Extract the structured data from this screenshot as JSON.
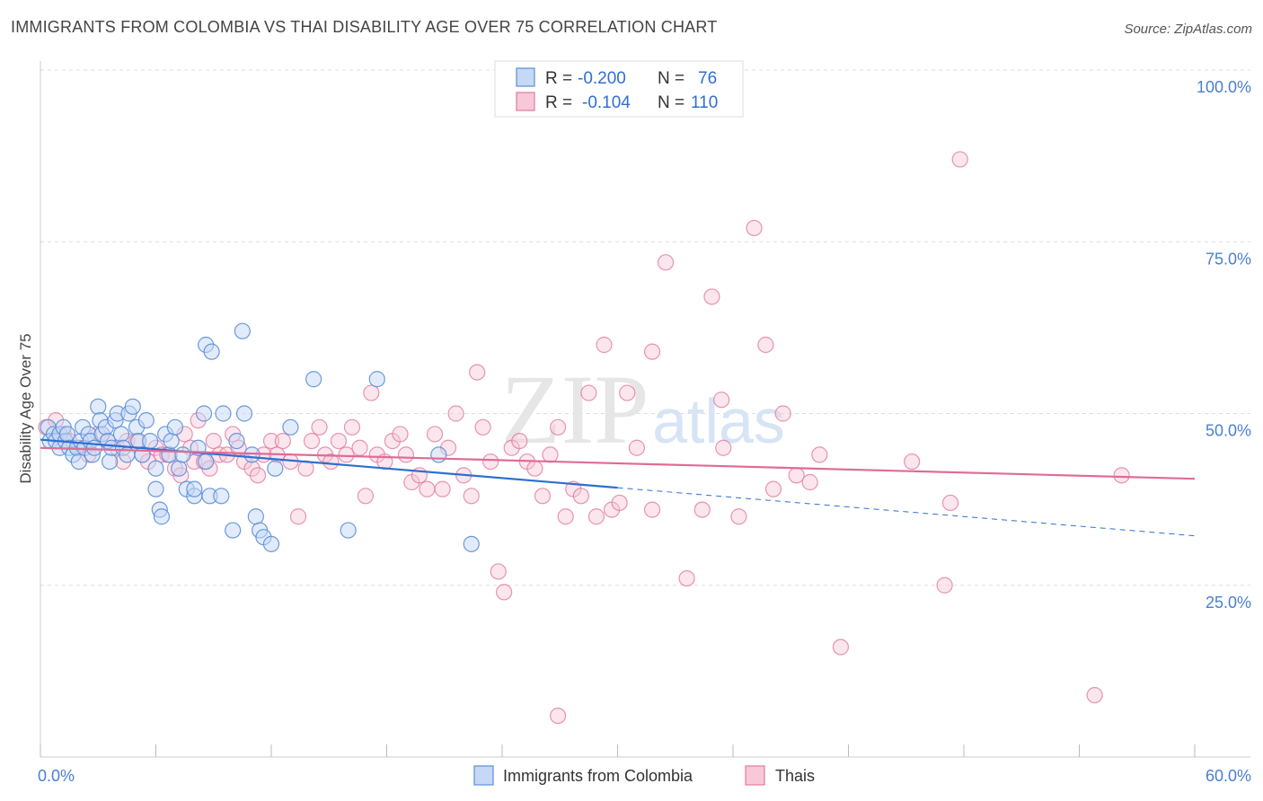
{
  "title": "IMMIGRANTS FROM COLOMBIA VS THAI DISABILITY AGE OVER 75 CORRELATION CHART",
  "source": "Source: ZipAtlas.com",
  "watermark": {
    "zip": "ZIP",
    "atlas": "atlas"
  },
  "colors": {
    "blue": "#5b8fd9",
    "blue_fill": "#c5d8f5",
    "blue_line": "#2e6fd0",
    "pink": "#e07aa0",
    "pink_fill": "#f8c8d8",
    "pink_line": "#e06b96",
    "tick_text": "#4a7fd0",
    "grid": "#dddddd"
  },
  "legend": {
    "rows": [
      {
        "r_label": "R =",
        "r_value": "-0.200",
        "n_label": "N =",
        "n_value": "76"
      },
      {
        "r_label": "R =",
        "r_value": "-0.104",
        "n_label": "N =",
        "n_value": "110"
      }
    ]
  },
  "chart_data": {
    "type": "scatter",
    "title": "IMMIGRANTS FROM COLOMBIA VS THAI DISABILITY AGE OVER 75 CORRELATION CHART",
    "xlabel": "",
    "ylabel": "Disability Age Over 75",
    "xlim": [
      0,
      60
    ],
    "ylim": [
      0,
      100
    ],
    "x_tick_labels": [
      "0.0%",
      "60.0%"
    ],
    "y_tick_labels": [
      "100.0%",
      "75.0%",
      "50.0%",
      "25.0%"
    ],
    "y_ticks": [
      100,
      75,
      50,
      25
    ],
    "grid": true,
    "legend_position": "top-center",
    "series": [
      {
        "name": "Immigrants from Colombia",
        "color": "blue",
        "trend": {
          "x0": 0,
          "y0": 46.2,
          "x1": 30,
          "y1": 39.2,
          "dash_to_x": 60,
          "dash_to_y": 32.2
        },
        "points": [
          [
            0.4,
            48
          ],
          [
            0.5,
            46
          ],
          [
            0.7,
            47
          ],
          [
            0.8,
            46
          ],
          [
            1,
            47
          ],
          [
            1,
            45
          ],
          [
            1.2,
            48
          ],
          [
            1.3,
            46
          ],
          [
            1.4,
            47
          ],
          [
            1.5,
            45
          ],
          [
            1.7,
            44
          ],
          [
            1.9,
            45
          ],
          [
            2,
            43
          ],
          [
            2.1,
            46
          ],
          [
            2.2,
            48
          ],
          [
            2.3,
            45
          ],
          [
            2.5,
            47
          ],
          [
            2.6,
            46
          ],
          [
            2.7,
            44
          ],
          [
            2.8,
            45
          ],
          [
            3,
            51
          ],
          [
            3.1,
            49
          ],
          [
            3.2,
            47
          ],
          [
            3.4,
            48
          ],
          [
            3.5,
            46
          ],
          [
            3.6,
            43
          ],
          [
            3.7,
            45
          ],
          [
            3.9,
            49
          ],
          [
            4,
            50
          ],
          [
            4.2,
            47
          ],
          [
            4.3,
            45
          ],
          [
            4.5,
            44
          ],
          [
            4.6,
            50
          ],
          [
            4.8,
            51
          ],
          [
            5,
            48
          ],
          [
            5.1,
            46
          ],
          [
            5.3,
            44
          ],
          [
            5.5,
            49
          ],
          [
            5.7,
            46
          ],
          [
            6,
            39
          ],
          [
            6,
            42
          ],
          [
            6.2,
            36
          ],
          [
            6.3,
            35
          ],
          [
            6.5,
            47
          ],
          [
            6.7,
            44
          ],
          [
            6.8,
            46
          ],
          [
            7,
            48
          ],
          [
            7.2,
            42
          ],
          [
            7.4,
            44
          ],
          [
            7.6,
            39
          ],
          [
            8,
            38
          ],
          [
            8,
            39
          ],
          [
            8.2,
            45
          ],
          [
            8.5,
            50
          ],
          [
            8.6,
            43
          ],
          [
            8.8,
            38
          ],
          [
            8.6,
            60
          ],
          [
            8.9,
            59
          ],
          [
            9.4,
            38
          ],
          [
            9.5,
            50
          ],
          [
            10.2,
            46
          ],
          [
            10,
            33
          ],
          [
            10.5,
            62
          ],
          [
            10.6,
            50
          ],
          [
            11,
            44
          ],
          [
            11.2,
            35
          ],
          [
            11.4,
            33
          ],
          [
            11.6,
            32
          ],
          [
            12,
            31
          ],
          [
            12.2,
            42
          ],
          [
            13,
            48
          ],
          [
            14.2,
            55
          ],
          [
            16,
            33
          ],
          [
            17.5,
            55
          ],
          [
            20.7,
            44
          ],
          [
            22.4,
            31
          ]
        ]
      },
      {
        "name": "Thais",
        "color": "pink",
        "trend": {
          "x0": 0,
          "y0": 45.0,
          "x1": 60,
          "y1": 40.5
        },
        "points": [
          [
            0.3,
            48
          ],
          [
            0.8,
            49
          ],
          [
            1.2,
            47
          ],
          [
            1.5,
            46
          ],
          [
            2,
            45
          ],
          [
            2.5,
            44
          ],
          [
            3,
            47
          ],
          [
            3.5,
            46
          ],
          [
            4,
            45
          ],
          [
            4.3,
            43
          ],
          [
            4.5,
            46
          ],
          [
            5,
            46
          ],
          [
            5.3,
            44
          ],
          [
            5.6,
            43
          ],
          [
            6,
            45
          ],
          [
            6.3,
            44
          ],
          [
            6.6,
            44
          ],
          [
            7,
            42
          ],
          [
            7.3,
            41
          ],
          [
            7.5,
            47
          ],
          [
            7.8,
            45
          ],
          [
            8,
            43
          ],
          [
            8.2,
            49
          ],
          [
            8.5,
            43
          ],
          [
            8.8,
            42
          ],
          [
            9,
            46
          ],
          [
            9.3,
            44
          ],
          [
            9.7,
            44
          ],
          [
            10,
            47
          ],
          [
            10.3,
            45
          ],
          [
            10.6,
            43
          ],
          [
            11,
            42
          ],
          [
            11.3,
            41
          ],
          [
            11.6,
            44
          ],
          [
            12,
            46
          ],
          [
            12.3,
            44
          ],
          [
            12.6,
            46
          ],
          [
            13,
            43
          ],
          [
            13.4,
            35
          ],
          [
            13.8,
            42
          ],
          [
            14.1,
            46
          ],
          [
            14.5,
            48
          ],
          [
            14.8,
            44
          ],
          [
            15.1,
            43
          ],
          [
            15.5,
            46
          ],
          [
            15.9,
            44
          ],
          [
            16.2,
            48
          ],
          [
            16.6,
            45
          ],
          [
            16.9,
            38
          ],
          [
            17.2,
            53
          ],
          [
            17.5,
            44
          ],
          [
            17.9,
            43
          ],
          [
            18.3,
            46
          ],
          [
            18.7,
            47
          ],
          [
            19,
            44
          ],
          [
            19.3,
            40
          ],
          [
            19.7,
            41
          ],
          [
            20.1,
            39
          ],
          [
            20.5,
            47
          ],
          [
            20.9,
            39
          ],
          [
            21.2,
            45
          ],
          [
            21.6,
            50
          ],
          [
            22,
            41
          ],
          [
            22.4,
            38
          ],
          [
            22.7,
            56
          ],
          [
            23,
            48
          ],
          [
            23.4,
            43
          ],
          [
            23.8,
            27
          ],
          [
            24.1,
            24
          ],
          [
            24.5,
            45
          ],
          [
            24.9,
            46
          ],
          [
            25.3,
            43
          ],
          [
            25.7,
            42
          ],
          [
            26.1,
            38
          ],
          [
            26.5,
            44
          ],
          [
            26.9,
            48
          ],
          [
            27.3,
            35
          ],
          [
            27.7,
            39
          ],
          [
            28.1,
            38
          ],
          [
            28.5,
            53
          ],
          [
            28.9,
            35
          ],
          [
            29.3,
            60
          ],
          [
            29.7,
            36
          ],
          [
            30.1,
            37
          ],
          [
            30.5,
            53
          ],
          [
            31,
            45
          ],
          [
            31.8,
            36
          ],
          [
            32.5,
            72
          ],
          [
            33.6,
            26
          ],
          [
            34.4,
            36
          ],
          [
            34.9,
            67
          ],
          [
            35.5,
            45
          ],
          [
            36.3,
            35
          ],
          [
            37.1,
            77
          ],
          [
            37.7,
            60
          ],
          [
            38.1,
            39
          ],
          [
            38.6,
            50
          ],
          [
            39.3,
            41
          ],
          [
            40,
            40
          ],
          [
            40.5,
            44
          ],
          [
            41.6,
            16
          ],
          [
            45.3,
            43
          ],
          [
            47.3,
            37
          ],
          [
            47,
            25
          ],
          [
            47.8,
            87
          ],
          [
            54.8,
            9
          ],
          [
            56.2,
            41
          ],
          [
            26.9,
            6
          ],
          [
            31.8,
            59
          ],
          [
            35.4,
            52
          ]
        ]
      }
    ],
    "bottom_legend": [
      "Immigrants from Colombia",
      "Thais"
    ]
  }
}
